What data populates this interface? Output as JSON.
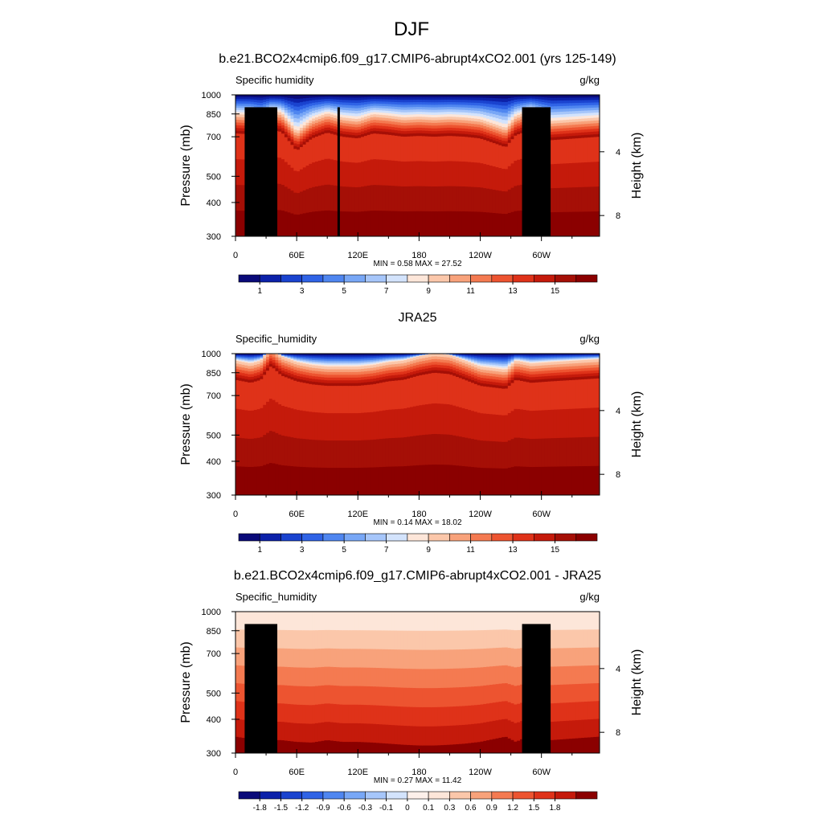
{
  "page_title": "DJF",
  "colors": {
    "seq_levels": [
      "#0a0a79",
      "#0c21a9",
      "#1a43cf",
      "#2f63e6",
      "#4f86f0",
      "#78a7f6",
      "#a6c6fa",
      "#d3e3fc",
      "#fde6d9",
      "#fbc7aa",
      "#f8a27b",
      "#f47a51",
      "#ed5430",
      "#df3219",
      "#c51a0b",
      "#a50f06",
      "#8b0000"
    ],
    "diff_levels": [
      "#0a0a79",
      "#0c21a9",
      "#1a43cf",
      "#2f63e6",
      "#4f86f0",
      "#78a7f6",
      "#a6c6fa",
      "#d3e3fc",
      "#fdf0ea",
      "#fde6d9",
      "#fbc7aa",
      "#f8a27b",
      "#f47a51",
      "#ed5430",
      "#df3219",
      "#c51a0b",
      "#8b0000"
    ],
    "terrain": "#000000"
  },
  "panels": [
    {
      "title": "b.e21.BCO2x4cmip6.f09_g17.CMIP6-abrupt4xCO2.001 (yrs 125-149)",
      "left_label": "Specific humidity",
      "right_label": "g/kg",
      "ylabel": "Pressure (mb)",
      "ylabel_right": "Height (km)",
      "stats": "MIN =   0.58  MAX =  27.52",
      "colorbar_ticks": [
        "1",
        "3",
        "5",
        "7",
        "9",
        "11",
        "13",
        "15"
      ],
      "palette": "seq",
      "terrain": true
    },
    {
      "title": "JRA25",
      "left_label": "Specific_humidity",
      "right_label": "g/kg",
      "ylabel": "Pressure (mb)",
      "ylabel_right": "Height (km)",
      "stats": "MIN =   0.14  MAX =  18.02",
      "colorbar_ticks": [
        "1",
        "3",
        "5",
        "7",
        "9",
        "11",
        "13",
        "15"
      ],
      "palette": "seq",
      "terrain": false
    },
    {
      "title": "b.e21.BCO2x4cmip6.f09_g17.CMIP6-abrupt4xCO2.001 - JRA25",
      "left_label": "Specific_humidity",
      "right_label": "g/kg",
      "ylabel": "Pressure (mb)",
      "ylabel_right": "Height (km)",
      "stats": "MIN =   0.27  MAX =  11.42",
      "colorbar_ticks": [
        "-1.8",
        "-1.5",
        "-1.2",
        "-0.9",
        "-0.6",
        "-0.3",
        "-0.1",
        "0",
        "0.1",
        "0.3",
        "0.6",
        "0.9",
        "1.2",
        "1.5",
        "1.8"
      ],
      "palette": "diff",
      "terrain": true
    }
  ],
  "chart_data": [
    {
      "type": "heatmap",
      "title": "b.e21.BCO2x4cmip6.f09_g17.CMIP6-abrupt4xCO2.001 (yrs 125-149)",
      "xlabel": "",
      "ylabel": "Pressure (mb)",
      "x_ticks": [
        "0",
        "60E",
        "120E",
        "180",
        "120W",
        "60W"
      ],
      "x_tick_values": [
        0,
        60,
        120,
        180,
        240,
        300
      ],
      "xlim": [
        0,
        357
      ],
      "y_ticks": [
        "300",
        "400",
        "500",
        "700",
        "850",
        "1000"
      ],
      "y_tick_values": [
        300,
        400,
        500,
        700,
        850,
        1000
      ],
      "ylim": [
        1000,
        300
      ],
      "y_scale": "log",
      "right_axis_ticks": [
        "8",
        "4"
      ],
      "right_axis_values": [
        8,
        4
      ],
      "levels": [
        1,
        2,
        3,
        4,
        5,
        6,
        7,
        8,
        9,
        10,
        11,
        12,
        13,
        14,
        15,
        16
      ],
      "min": 0.58,
      "max": 27.52,
      "moist_layer_top_mb": [
        720,
        715,
        690,
        740,
        730,
        620,
        690,
        725,
        700,
        690,
        720,
        712,
        700,
        705,
        700,
        705,
        700,
        690,
        640,
        710,
        740,
        680,
        700
      ],
      "moist_layer_lon": [
        0,
        15,
        25,
        35,
        45,
        60,
        75,
        90,
        105,
        120,
        135,
        150,
        165,
        180,
        195,
        210,
        225,
        240,
        265,
        275,
        290,
        310,
        357
      ]
    },
    {
      "type": "heatmap",
      "title": "JRA25",
      "xlabel": "",
      "ylabel": "Pressure (mb)",
      "x_ticks": [
        "0",
        "60E",
        "120E",
        "180",
        "120W",
        "60W"
      ],
      "x_tick_values": [
        0,
        60,
        120,
        180,
        240,
        300
      ],
      "xlim": [
        0,
        357
      ],
      "y_ticks": [
        "300",
        "400",
        "500",
        "700",
        "850",
        "1000"
      ],
      "y_tick_values": [
        300,
        400,
        500,
        700,
        850,
        1000
      ],
      "ylim": [
        1000,
        300
      ],
      "y_scale": "log",
      "right_axis_ticks": [
        "8",
        "4"
      ],
      "right_axis_values": [
        8,
        4
      ],
      "levels": [
        1,
        2,
        3,
        4,
        5,
        6,
        7,
        8,
        9,
        10,
        11,
        12,
        13,
        14,
        15,
        16
      ],
      "min": 0.14,
      "max": 18.02,
      "moist_layer_top_mb": [
        800,
        780,
        800,
        900,
        830,
        790,
        770,
        760,
        760,
        760,
        770,
        790,
        800,
        830,
        850,
        840,
        800,
        760,
        740,
        800,
        780,
        790,
        810
      ],
      "moist_layer_lon": [
        0,
        15,
        25,
        35,
        45,
        60,
        75,
        90,
        105,
        120,
        135,
        150,
        165,
        180,
        195,
        210,
        225,
        240,
        265,
        275,
        290,
        310,
        357
      ]
    },
    {
      "type": "heatmap",
      "title": "b.e21.BCO2x4cmip6.f09_g17.CMIP6-abrupt4xCO2.001 - JRA25",
      "xlabel": "",
      "ylabel": "Pressure (mb)",
      "x_ticks": [
        "0",
        "60E",
        "120E",
        "180",
        "120W",
        "60W"
      ],
      "x_tick_values": [
        0,
        60,
        120,
        180,
        240,
        300
      ],
      "xlim": [
        0,
        357
      ],
      "y_ticks": [
        "300",
        "400",
        "500",
        "700",
        "850",
        "1000"
      ],
      "y_tick_values": [
        300,
        400,
        500,
        700,
        850,
        1000
      ],
      "ylim": [
        1000,
        300
      ],
      "y_scale": "log",
      "right_axis_ticks": [
        "8",
        "4"
      ],
      "right_axis_values": [
        8,
        4
      ],
      "levels": [
        -1.8,
        -1.5,
        -1.2,
        -0.9,
        -0.6,
        -0.3,
        -0.1,
        0,
        0.1,
        0.3,
        0.6,
        0.9,
        1.2,
        1.5,
        1.8
      ],
      "min": 0.27,
      "max": 11.42,
      "saturated_top_mb": [
        345,
        338,
        332,
        335,
        335,
        330,
        328,
        335,
        330,
        330,
        328,
        325,
        322,
        320,
        320,
        322,
        325,
        330,
        345,
        330,
        350,
        335,
        345
      ],
      "moist_layer_lon": [
        0,
        15,
        25,
        35,
        45,
        60,
        75,
        90,
        105,
        120,
        135,
        150,
        165,
        180,
        195,
        210,
        225,
        240,
        265,
        275,
        290,
        310,
        357
      ]
    }
  ]
}
